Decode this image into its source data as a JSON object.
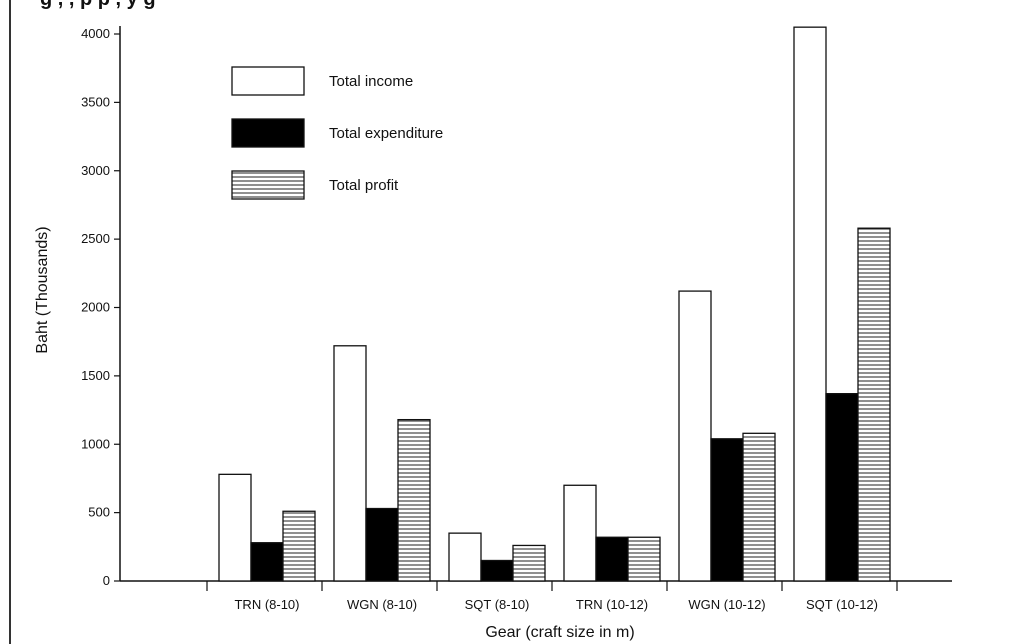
{
  "page": {
    "caption": "g  ,  ,   p      p  ,   y  g"
  },
  "chart_data": {
    "type": "bar",
    "title": "",
    "xlabel": "Gear (craft size in m)",
    "ylabel": "Baht (Thousands)",
    "ylim": [
      0,
      4000
    ],
    "yticks": [
      0,
      500,
      1000,
      1500,
      2000,
      2500,
      3000,
      3500,
      4000
    ],
    "grid": false,
    "legend_position": "top-left",
    "categories": [
      "TRN (8-10)",
      "WGN (8-10)",
      "SQT (8-10)",
      "TRN (10-12)",
      "WGN (10-12)",
      "SQT (10-12)"
    ],
    "series": [
      {
        "name": "Total income",
        "fill": "white",
        "values": [
          780,
          1720,
          350,
          700,
          2120,
          4050
        ]
      },
      {
        "name": "Total expenditure",
        "fill": "black",
        "values": [
          280,
          530,
          150,
          320,
          1040,
          1370
        ]
      },
      {
        "name": "Total profit",
        "fill": "hatched",
        "values": [
          510,
          1180,
          260,
          320,
          1080,
          2580
        ]
      }
    ]
  }
}
